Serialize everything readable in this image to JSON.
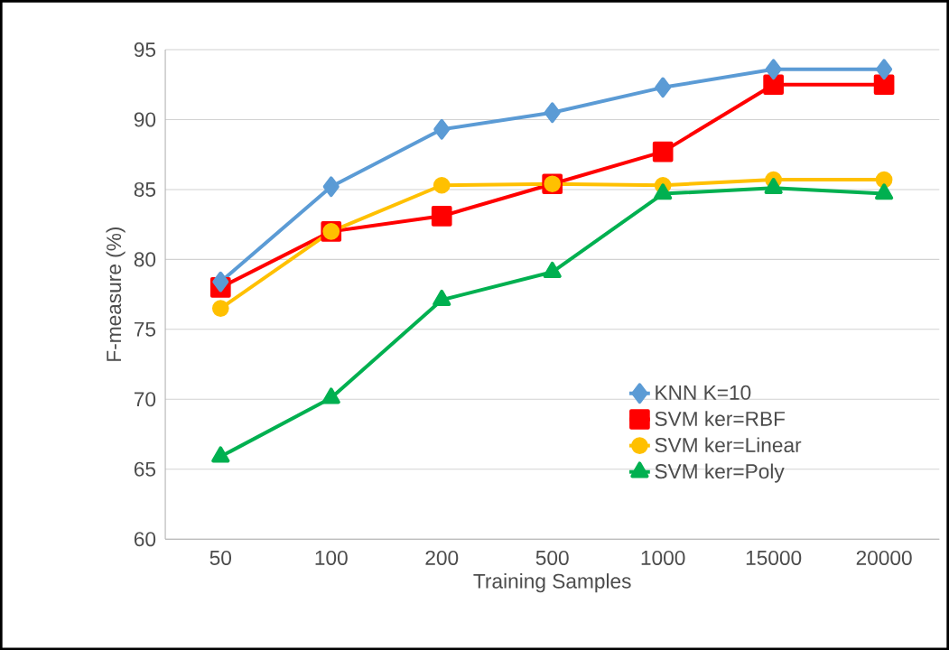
{
  "chart_data": {
    "type": "line",
    "xlabel": "Training Samples",
    "ylabel": "F-measure (%)",
    "categories": [
      "50",
      "100",
      "200",
      "500",
      "1000",
      "15000",
      "20000"
    ],
    "series": [
      {
        "name": "KNN K=10",
        "color": "#5b9bd5",
        "marker": "diamond",
        "values": [
          78.4,
          85.2,
          89.3,
          90.5,
          92.3,
          93.6,
          93.6
        ]
      },
      {
        "name": "SVM ker=RBF",
        "color": "#ff0000",
        "marker": "square",
        "values": [
          78.0,
          82.0,
          83.1,
          85.4,
          87.7,
          92.5,
          92.5
        ]
      },
      {
        "name": "SVM ker=Linear",
        "color": "#ffc000",
        "marker": "circle",
        "values": [
          76.5,
          82.0,
          85.3,
          85.4,
          85.3,
          85.7,
          85.7
        ]
      },
      {
        "name": "SVM ker=Poly",
        "color": "#00b050",
        "marker": "triangle",
        "values": [
          65.9,
          70.1,
          77.1,
          79.1,
          84.7,
          85.1,
          84.7
        ]
      }
    ],
    "ylim": [
      60,
      95
    ],
    "yticks": [
      60,
      65,
      70,
      75,
      80,
      85,
      90,
      95
    ],
    "grid": "y",
    "legend": "bottom right"
  }
}
